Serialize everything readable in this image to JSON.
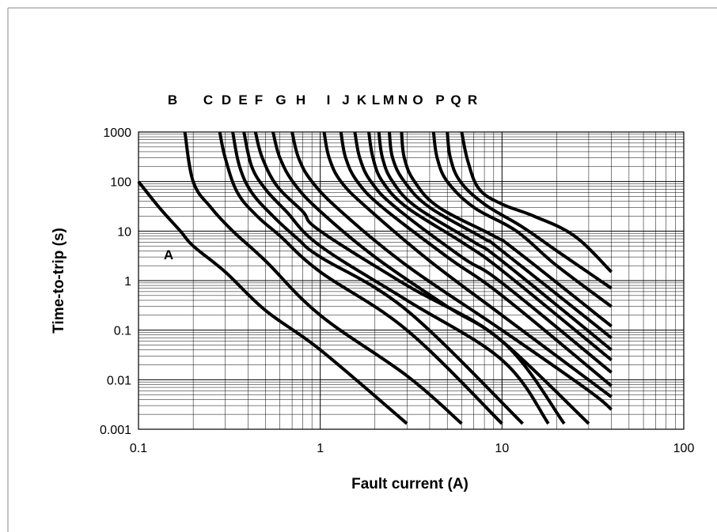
{
  "chart_data": {
    "type": "line",
    "xlabel": "Fault current (A)",
    "ylabel": "Time-to-trip (s)",
    "xscale": "log",
    "yscale": "log",
    "xlim": [
      0.1,
      100
    ],
    "ylim": [
      0.001,
      1000
    ],
    "x_ticks": [
      "0.1",
      "1",
      "10",
      "100"
    ],
    "y_ticks": [
      "0.001",
      "0.01",
      "0.1",
      "1",
      "10",
      "100",
      "1000"
    ],
    "grid": true,
    "colors": {
      "line": "#000000",
      "grid": "#000000",
      "frame": "#888888"
    },
    "series": [
      {
        "name": "A",
        "points": [
          [
            0.1,
            100
          ],
          [
            0.13,
            30
          ],
          [
            0.17,
            10
          ],
          [
            0.2,
            5
          ],
          [
            0.3,
            1.5
          ],
          [
            0.5,
            0.25
          ],
          [
            1,
            0.04
          ],
          [
            3,
            0.0013
          ]
        ]
      },
      {
        "name": "B",
        "points": [
          [
            0.18,
            1000
          ],
          [
            0.2,
            100
          ],
          [
            0.25,
            30
          ],
          [
            0.33,
            10
          ],
          [
            0.5,
            2.5
          ],
          [
            1,
            0.2
          ],
          [
            3,
            0.012
          ],
          [
            6,
            0.0013
          ]
        ]
      },
      {
        "name": "C",
        "points": [
          [
            0.28,
            1000
          ],
          [
            0.3,
            300
          ],
          [
            0.35,
            60
          ],
          [
            0.45,
            20
          ],
          [
            0.6,
            8
          ],
          [
            1,
            1.5
          ],
          [
            3,
            0.1
          ],
          [
            10,
            0.0013
          ]
        ]
      },
      {
        "name": "D",
        "points": [
          [
            0.33,
            1000
          ],
          [
            0.36,
            200
          ],
          [
            0.42,
            60
          ],
          [
            0.55,
            20
          ],
          [
            0.75,
            7
          ],
          [
            1,
            3
          ],
          [
            3,
            0.25
          ],
          [
            13,
            0.0013
          ]
        ]
      },
      {
        "name": "E",
        "points": [
          [
            0.38,
            1000
          ],
          [
            0.42,
            200
          ],
          [
            0.5,
            70
          ],
          [
            0.65,
            25
          ],
          [
            1,
            5
          ],
          [
            3,
            0.4
          ],
          [
            10,
            0.025
          ],
          [
            18,
            0.0013
          ]
        ]
      },
      {
        "name": "F",
        "points": [
          [
            0.44,
            1000
          ],
          [
            0.48,
            300
          ],
          [
            0.58,
            80
          ],
          [
            0.8,
            25
          ],
          [
            1,
            10
          ],
          [
            3,
            0.8
          ],
          [
            10,
            0.06
          ],
          [
            22,
            0.0013
          ]
        ]
      },
      {
        "name": "G",
        "points": [
          [
            0.55,
            1000
          ],
          [
            0.6,
            300
          ],
          [
            0.72,
            90
          ],
          [
            1,
            25
          ],
          [
            2,
            3
          ],
          [
            5,
            0.3
          ],
          [
            10,
            0.06
          ],
          [
            30,
            0.0013
          ]
        ]
      },
      {
        "name": "H",
        "points": [
          [
            0.7,
            1000
          ],
          [
            0.76,
            300
          ],
          [
            0.9,
            100
          ],
          [
            1.3,
            25
          ],
          [
            3,
            2
          ],
          [
            10,
            0.1
          ],
          [
            30,
            0.006
          ],
          [
            40,
            0.0025
          ]
        ]
      },
      {
        "name": "I",
        "points": [
          [
            1.05,
            1000
          ],
          [
            1.12,
            300
          ],
          [
            1.3,
            100
          ],
          [
            1.8,
            30
          ],
          [
            4,
            2.5
          ],
          [
            10,
            0.2
          ],
          [
            40,
            0.0045
          ]
        ]
      },
      {
        "name": "J",
        "points": [
          [
            1.3,
            1000
          ],
          [
            1.38,
            300
          ],
          [
            1.6,
            100
          ],
          [
            2.2,
            30
          ],
          [
            5,
            3
          ],
          [
            10,
            0.5
          ],
          [
            40,
            0.0075
          ]
        ]
      },
      {
        "name": "K",
        "points": [
          [
            1.55,
            1000
          ],
          [
            1.65,
            300
          ],
          [
            1.9,
            100
          ],
          [
            2.6,
            30
          ],
          [
            6,
            3
          ],
          [
            10,
            0.9
          ],
          [
            40,
            0.014
          ]
        ]
      },
      {
        "name": "L",
        "points": [
          [
            1.85,
            1000
          ],
          [
            1.95,
            300
          ],
          [
            2.2,
            100
          ],
          [
            3,
            30
          ],
          [
            6,
            6
          ],
          [
            10,
            1.6
          ],
          [
            40,
            0.025
          ]
        ]
      },
      {
        "name": "M",
        "points": [
          [
            2.1,
            1000
          ],
          [
            2.2,
            300
          ],
          [
            2.5,
            100
          ],
          [
            3.4,
            30
          ],
          [
            7,
            6
          ],
          [
            10,
            2.5
          ],
          [
            40,
            0.04
          ]
        ]
      },
      {
        "name": "N",
        "points": [
          [
            2.4,
            1000
          ],
          [
            2.5,
            300
          ],
          [
            2.9,
            100
          ],
          [
            4,
            30
          ],
          [
            8,
            7
          ],
          [
            10,
            4
          ],
          [
            40,
            0.07
          ]
        ]
      },
      {
        "name": "O",
        "points": [
          [
            2.8,
            1000
          ],
          [
            2.9,
            300
          ],
          [
            3.3,
            100
          ],
          [
            4.5,
            30
          ],
          [
            9,
            8
          ],
          [
            12,
            4
          ],
          [
            40,
            0.12
          ]
        ]
      },
      {
        "name": "P",
        "points": [
          [
            4.2,
            1000
          ],
          [
            4.4,
            300
          ],
          [
            5,
            100
          ],
          [
            7,
            30
          ],
          [
            12,
            10
          ],
          [
            20,
            2
          ],
          [
            40,
            0.3
          ]
        ]
      },
      {
        "name": "Q",
        "points": [
          [
            5,
            1000
          ],
          [
            5.2,
            300
          ],
          [
            5.9,
            100
          ],
          [
            8,
            35
          ],
          [
            13,
            12
          ],
          [
            20,
            4
          ],
          [
            40,
            0.7
          ]
        ]
      },
      {
        "name": "R",
        "points": [
          [
            6,
            1000
          ],
          [
            6.5,
            250
          ],
          [
            7.5,
            70
          ],
          [
            10,
            35
          ],
          [
            15,
            20
          ],
          [
            25,
            8
          ],
          [
            40,
            1.5
          ]
        ]
      }
    ]
  }
}
